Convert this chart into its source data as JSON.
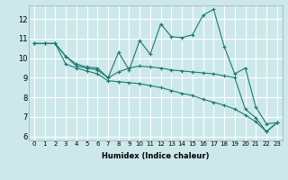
{
  "xlabel": "Humidex (Indice chaleur)",
  "bg_color": "#cce8ea",
  "grid_color": "#ffffff",
  "line_color": "#1a7a6e",
  "xlim": [
    -0.5,
    23.5
  ],
  "ylim": [
    5.8,
    12.7
  ],
  "xticks": [
    0,
    1,
    2,
    3,
    4,
    5,
    6,
    7,
    8,
    9,
    10,
    11,
    12,
    13,
    14,
    15,
    16,
    17,
    18,
    19,
    20,
    21,
    22,
    23
  ],
  "yticks": [
    6,
    7,
    8,
    9,
    10,
    11,
    12
  ],
  "line1_x": [
    0,
    1,
    2,
    3,
    4,
    5,
    6,
    7,
    8,
    9,
    10,
    11,
    12,
    13,
    14,
    15,
    16,
    17,
    18,
    19,
    20,
    21,
    22,
    23
  ],
  "line1_y": [
    10.75,
    10.75,
    10.75,
    10.1,
    9.7,
    9.55,
    9.5,
    9.0,
    10.3,
    9.4,
    10.9,
    10.2,
    11.75,
    11.1,
    11.05,
    11.2,
    12.2,
    12.5,
    10.6,
    9.2,
    9.5,
    7.5,
    6.65,
    6.7
  ],
  "line2_x": [
    0,
    1,
    2,
    3,
    4,
    5,
    6,
    7,
    8,
    9,
    10,
    11,
    12,
    13,
    14,
    15,
    16,
    17,
    18,
    19,
    20,
    21,
    22,
    23
  ],
  "line2_y": [
    10.75,
    10.75,
    10.75,
    10.1,
    9.6,
    9.5,
    9.4,
    9.0,
    9.3,
    9.5,
    9.6,
    9.55,
    9.5,
    9.4,
    9.35,
    9.3,
    9.25,
    9.2,
    9.1,
    9.0,
    7.4,
    6.95,
    6.25,
    6.7
  ],
  "line3_x": [
    0,
    1,
    2,
    3,
    4,
    5,
    6,
    7,
    8,
    9,
    10,
    11,
    12,
    13,
    14,
    15,
    16,
    17,
    18,
    19,
    20,
    21,
    22,
    23
  ],
  "line3_y": [
    10.75,
    10.75,
    10.75,
    9.7,
    9.5,
    9.35,
    9.2,
    8.85,
    8.8,
    8.75,
    8.7,
    8.6,
    8.5,
    8.35,
    8.2,
    8.1,
    7.9,
    7.75,
    7.6,
    7.4,
    7.1,
    6.75,
    6.25,
    6.7
  ]
}
